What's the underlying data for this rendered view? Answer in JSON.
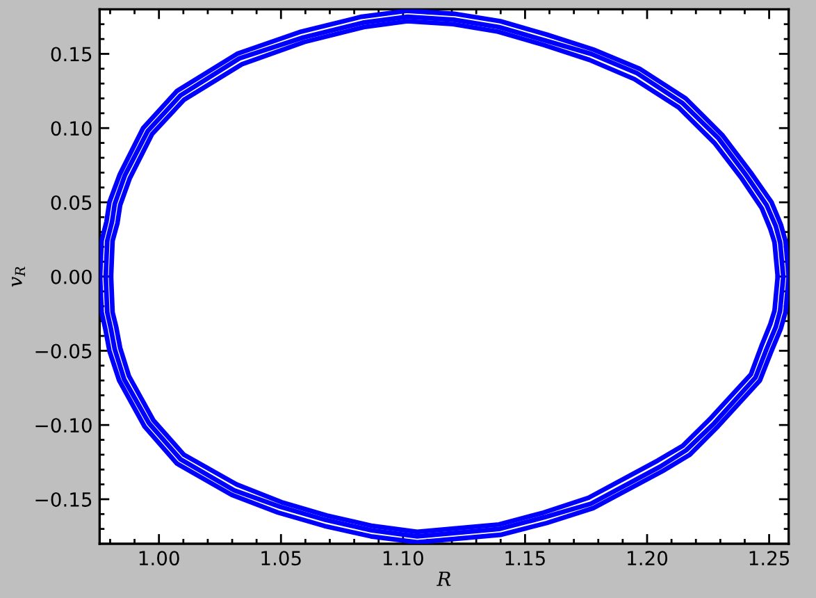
{
  "chart_data": {
    "type": "line",
    "xlabel": "R",
    "ylabel": "v$_{R}$",
    "xlim": [
      0.9757,
      1.258
    ],
    "ylim": [
      -0.18,
      0.18
    ],
    "xticks": [
      {
        "value": 1.0,
        "label": "1.00"
      },
      {
        "value": 1.05,
        "label": "1.05"
      },
      {
        "value": 1.1,
        "label": "1.10"
      },
      {
        "value": 1.15,
        "label": "1.15"
      },
      {
        "value": 1.2,
        "label": "1.20"
      },
      {
        "value": 1.25,
        "label": "1.25"
      },
      {
        "value": 0.98,
        "label": null
      },
      {
        "value": 0.99,
        "label": null
      },
      {
        "value": 1.01,
        "label": null
      },
      {
        "value": 1.02,
        "label": null
      },
      {
        "value": 1.03,
        "label": null
      },
      {
        "value": 1.04,
        "label": null
      },
      {
        "value": 1.06,
        "label": null
      },
      {
        "value": 1.07,
        "label": null
      },
      {
        "value": 1.08,
        "label": null
      },
      {
        "value": 1.09,
        "label": null
      },
      {
        "value": 1.11,
        "label": null
      },
      {
        "value": 1.12,
        "label": null
      },
      {
        "value": 1.13,
        "label": null
      },
      {
        "value": 1.14,
        "label": null
      },
      {
        "value": 1.16,
        "label": null
      },
      {
        "value": 1.17,
        "label": null
      },
      {
        "value": 1.18,
        "label": null
      },
      {
        "value": 1.19,
        "label": null
      },
      {
        "value": 1.21,
        "label": null
      },
      {
        "value": 1.22,
        "label": null
      },
      {
        "value": 1.23,
        "label": null
      },
      {
        "value": 1.24,
        "label": null
      }
    ],
    "yticks": [
      {
        "value": -0.15,
        "label": "−0.15"
      },
      {
        "value": -0.1,
        "label": "−0.10"
      },
      {
        "value": -0.05,
        "label": "−0.05"
      },
      {
        "value": 0,
        "label": "0.00"
      },
      {
        "value": 0.05,
        "label": "0.05"
      },
      {
        "value": 0.1,
        "label": "0.10"
      },
      {
        "value": 0.15,
        "label": "0.15"
      },
      {
        "value": -0.17,
        "label": null
      },
      {
        "value": -0.16,
        "label": null
      },
      {
        "value": -0.14,
        "label": null
      },
      {
        "value": -0.13,
        "label": null
      },
      {
        "value": -0.12,
        "label": null
      },
      {
        "value": -0.11,
        "label": null
      },
      {
        "value": -0.09,
        "label": null
      },
      {
        "value": -0.08,
        "label": null
      },
      {
        "value": -0.07,
        "label": null
      },
      {
        "value": -0.06,
        "label": null
      },
      {
        "value": -0.04,
        "label": null
      },
      {
        "value": -0.03,
        "label": null
      },
      {
        "value": -0.02,
        "label": null
      },
      {
        "value": -0.01,
        "label": null
      },
      {
        "value": 0.01,
        "label": null
      },
      {
        "value": 0.02,
        "label": null
      },
      {
        "value": 0.03,
        "label": null
      },
      {
        "value": 0.04,
        "label": null
      },
      {
        "value": 0.06,
        "label": null
      },
      {
        "value": 0.07,
        "label": null
      },
      {
        "value": 0.08,
        "label": null
      },
      {
        "value": 0.09,
        "label": null
      },
      {
        "value": 0.11,
        "label": null
      },
      {
        "value": 0.12,
        "label": null
      },
      {
        "value": 0.13,
        "label": null
      },
      {
        "value": 0.14,
        "label": null
      },
      {
        "value": 0.16,
        "label": null
      },
      {
        "value": 0.17,
        "label": null
      }
    ],
    "series": [
      {
        "color": "#0000ff",
        "x": [
          0.9759,
          0.9765,
          0.9785,
          0.9797,
          0.984,
          0.9935,
          1.0074,
          1.032,
          1.0583,
          1.083,
          1.1018,
          1.121,
          1.1399,
          1.1589,
          1.1779,
          1.1969,
          1.2158,
          1.231,
          1.2425,
          1.251,
          1.2548,
          1.2567,
          1.258
        ],
        "values": [
          0,
          0.024,
          0.037,
          0.05,
          0.069,
          0.1,
          0.125,
          0.15,
          0.165,
          0.175,
          0.179,
          0.177,
          0.172,
          0.163,
          0.153,
          0.14,
          0.12,
          0.095,
          0.07,
          0.05,
          0.035,
          0.024,
          0
        ]
      },
      {
        "color": "#0000ff",
        "x": [
          0.9759,
          0.9765,
          0.978,
          0.9797,
          0.9837,
          0.9941,
          1.0074,
          1.0298,
          1.0488,
          1.0678,
          1.0868,
          1.1058,
          1.1399,
          1.1589,
          1.1779,
          1.2064,
          1.2175,
          1.229,
          1.2462,
          1.251,
          1.2548,
          1.2567,
          1.258
        ],
        "values": [
          0,
          -0.024,
          -0.035,
          -0.05,
          -0.07,
          -0.101,
          -0.126,
          -0.147,
          -0.159,
          -0.168,
          -0.175,
          -0.179,
          -0.174,
          -0.166,
          -0.156,
          -0.131,
          -0.12,
          -0.101,
          -0.07,
          -0.05,
          -0.035,
          -0.024,
          0
        ]
      },
      {
        "color": "#0000ff",
        "x": [
          0.9782,
          0.9788,
          0.9808,
          0.9819,
          0.986,
          0.9954,
          1.0088,
          1.033,
          1.059,
          1.0835,
          1.1018,
          1.1208,
          1.1394,
          1.1583,
          1.1771,
          1.1959,
          1.2144,
          1.2293,
          1.2407,
          1.249,
          1.2527,
          1.2545,
          1.2558
        ],
        "values": [
          0,
          0.024,
          0.037,
          0.049,
          0.068,
          0.098,
          0.122,
          0.147,
          0.161,
          0.171,
          0.175,
          0.173,
          0.168,
          0.159,
          0.15,
          0.137,
          0.117,
          0.093,
          0.068,
          0.048,
          0.034,
          0.023,
          0
        ]
      },
      {
        "color": "#0000ff",
        "x": [
          0.9782,
          0.9788,
          0.9803,
          0.9819,
          0.9857,
          0.996,
          1.0088,
          1.0308,
          1.0495,
          1.0684,
          1.0872,
          1.1058,
          1.1396,
          1.1583,
          1.177,
          1.2054,
          1.216,
          1.2274,
          1.2444,
          1.2489,
          1.2527,
          1.2545,
          1.2558
        ],
        "values": [
          0,
          -0.024,
          -0.035,
          -0.049,
          -0.069,
          -0.099,
          -0.123,
          -0.144,
          -0.155,
          -0.164,
          -0.171,
          -0.175,
          -0.17,
          -0.162,
          -0.153,
          -0.128,
          -0.117,
          -0.099,
          -0.068,
          -0.049,
          -0.034,
          -0.023,
          0
        ]
      },
      {
        "color": "#0000ff",
        "x": [
          0.9804,
          0.981,
          0.983,
          0.9841,
          0.988,
          0.9972,
          1.0102,
          1.034,
          1.0596,
          1.0839,
          1.1018,
          1.1205,
          1.1389,
          1.1576,
          1.1763,
          1.1948,
          1.2129,
          1.2276,
          1.2388,
          1.247,
          1.2505,
          1.2522,
          1.2535
        ],
        "values": [
          0,
          0.024,
          0.036,
          0.048,
          0.066,
          0.096,
          0.119,
          0.143,
          0.158,
          0.168,
          0.172,
          0.17,
          0.165,
          0.156,
          0.146,
          0.133,
          0.114,
          0.09,
          0.066,
          0.046,
          0.032,
          0.023,
          0
        ]
      },
      {
        "color": "#0000ff",
        "x": [
          0.9804,
          0.981,
          0.9825,
          0.9841,
          0.9877,
          0.9978,
          1.0102,
          1.0318,
          1.0502,
          1.0689,
          1.0876,
          1.1058,
          1.1393,
          1.1576,
          1.176,
          1.2043,
          1.2146,
          1.2257,
          1.2425,
          1.2468,
          1.2505,
          1.2522,
          1.2535
        ],
        "values": [
          0,
          -0.024,
          -0.034,
          -0.048,
          -0.067,
          -0.097,
          -0.12,
          -0.14,
          -0.152,
          -0.161,
          -0.168,
          -0.172,
          -0.167,
          -0.159,
          -0.149,
          -0.124,
          -0.114,
          -0.096,
          -0.066,
          -0.047,
          -0.032,
          -0.023,
          0
        ]
      }
    ]
  }
}
